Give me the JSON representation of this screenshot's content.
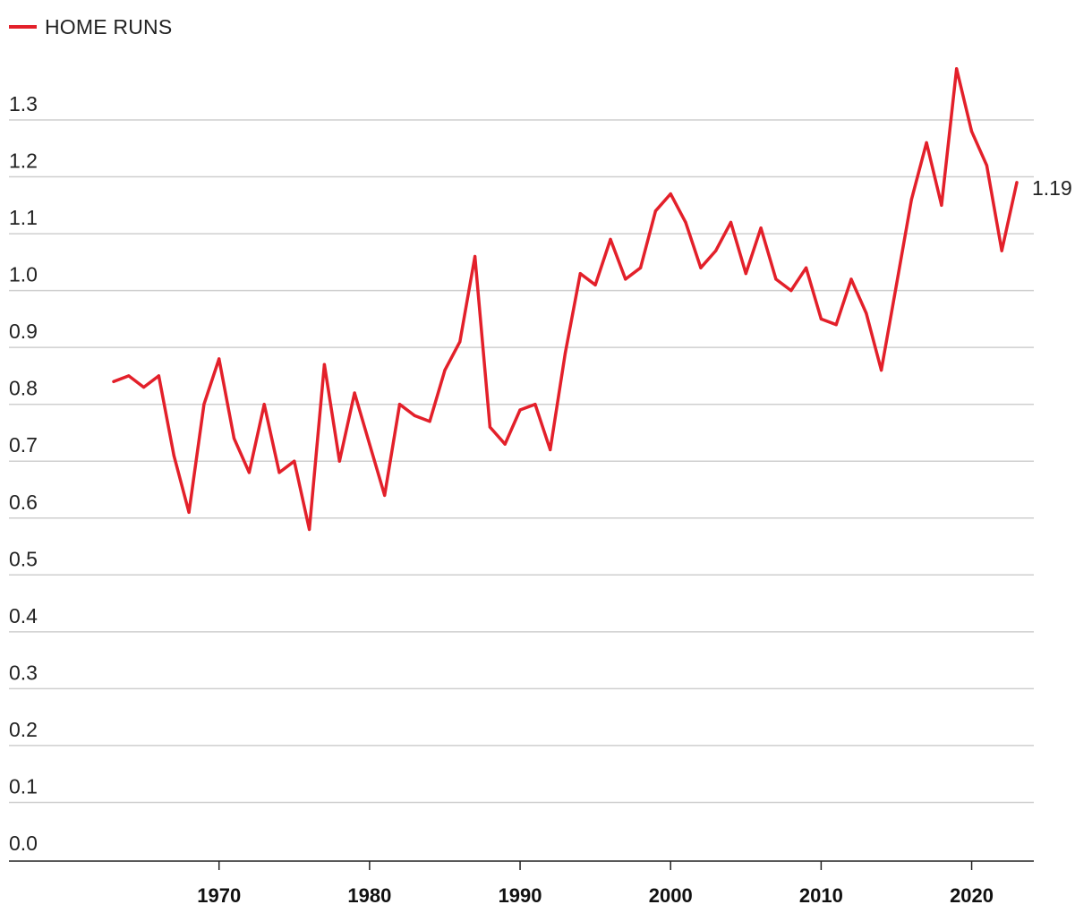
{
  "chart_data": {
    "type": "line",
    "title": "",
    "xlabel": "",
    "ylabel": "",
    "legend": {
      "position": "top-left"
    },
    "series": [
      {
        "name": "HOME RUNS",
        "color": "#e3202a",
        "x": [
          1963,
          1964,
          1965,
          1966,
          1967,
          1968,
          1969,
          1970,
          1971,
          1972,
          1973,
          1974,
          1975,
          1976,
          1977,
          1978,
          1979,
          1980,
          1981,
          1982,
          1983,
          1984,
          1985,
          1986,
          1987,
          1988,
          1989,
          1990,
          1991,
          1992,
          1993,
          1994,
          1995,
          1996,
          1997,
          1998,
          1999,
          2000,
          2001,
          2002,
          2003,
          2004,
          2005,
          2006,
          2007,
          2008,
          2009,
          2010,
          2011,
          2012,
          2013,
          2014,
          2015,
          2016,
          2017,
          2018,
          2019,
          2020,
          2021,
          2022,
          2023
        ],
        "values": [
          0.84,
          0.85,
          0.83,
          0.85,
          0.71,
          0.61,
          0.8,
          0.88,
          0.74,
          0.68,
          0.8,
          0.68,
          0.7,
          0.58,
          0.87,
          0.7,
          0.82,
          0.73,
          0.64,
          0.8,
          0.78,
          0.77,
          0.86,
          0.91,
          1.06,
          0.76,
          0.73,
          0.79,
          0.8,
          0.72,
          0.89,
          1.03,
          1.01,
          1.09,
          1.02,
          1.04,
          1.14,
          1.17,
          1.12,
          1.04,
          1.07,
          1.12,
          1.03,
          1.11,
          1.02,
          1.0,
          1.04,
          0.95,
          0.94,
          1.02,
          0.96,
          0.86,
          1.01,
          1.16,
          1.26,
          1.15,
          1.39,
          1.28,
          1.22,
          1.07,
          1.19
        ]
      }
    ],
    "y_ticks": [
      "0.0",
      "0.1",
      "0.2",
      "0.3",
      "0.4",
      "0.5",
      "0.6",
      "0.7",
      "0.8",
      "0.9",
      "1.0",
      "1.1",
      "1.2",
      "1.3"
    ],
    "x_ticks": [
      "1970",
      "1980",
      "1990",
      "2000",
      "2010",
      "2020"
    ],
    "end_label": "1.19",
    "ylim": [
      0,
      1.3
    ],
    "xlim": [
      1956,
      2024
    ],
    "grid": true
  }
}
